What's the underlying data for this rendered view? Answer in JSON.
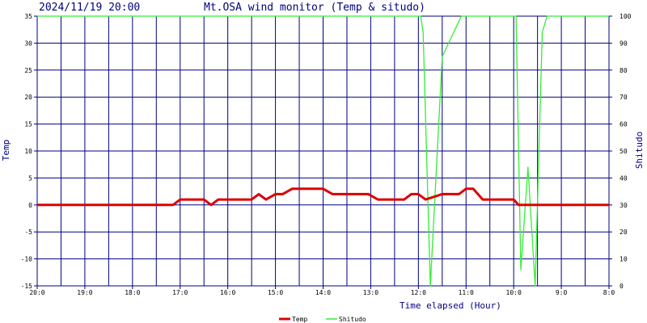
{
  "header": {
    "timestamp": "2024/11/19 20:00",
    "title": "Mt.OSA wind monitor (Temp & situdo)"
  },
  "colors": {
    "axis_text": "#000080",
    "grid": "#000080",
    "temp": "#dd0000",
    "shitudo": "#33ee33"
  },
  "chart_data": {
    "type": "line",
    "title": "Mt.OSA wind monitor (Temp & situdo)",
    "xlabel": "Time elapsed (Hour)",
    "ylabel_left": "Temp",
    "ylabel_right": "Shitudo",
    "x_ticks": [
      "20:0",
      "19:0",
      "18:0",
      "17:0",
      "16:0",
      "15:0",
      "14:0",
      "13:0",
      "12:0",
      "11:0",
      "10:0",
      "9:0",
      "8:0"
    ],
    "xlim": [
      0,
      12
    ],
    "y_left": {
      "lim": [
        -15,
        35
      ],
      "ticks": [
        "35",
        "30",
        "25",
        "20",
        "15",
        "10",
        "5",
        "0",
        "-5",
        "-10",
        "-15"
      ]
    },
    "y_right": {
      "lim": [
        0,
        100
      ],
      "ticks": [
        "100",
        "90",
        "80",
        "70",
        "60",
        "50",
        "40",
        "30",
        "20",
        "10",
        "0"
      ]
    },
    "grid": true,
    "legend_position": "bottom-center",
    "series": [
      {
        "name": "Temp",
        "axis": "left",
        "x": [
          0,
          2.85,
          3.0,
          3.5,
          3.65,
          3.8,
          4.5,
          4.65,
          4.8,
          5.0,
          5.15,
          5.35,
          6.0,
          6.2,
          6.95,
          7.15,
          7.7,
          7.85,
          8.0,
          8.15,
          8.5,
          8.65,
          8.85,
          9.0,
          9.15,
          9.35,
          10.0,
          10.1,
          12
        ],
        "y": [
          0,
          0,
          1,
          1,
          0,
          1,
          1,
          2,
          1,
          2,
          2,
          3,
          3,
          2,
          2,
          1,
          1,
          2,
          2,
          1,
          2,
          2,
          2,
          3,
          3,
          1,
          1,
          0,
          0
        ]
      },
      {
        "name": "Shitudo",
        "axis": "right",
        "x": [
          0,
          8.05,
          8.1,
          8.25,
          8.5,
          8.9,
          9.3,
          10.05,
          10.15,
          10.3,
          10.45,
          10.6,
          10.7,
          12
        ],
        "y": [
          100,
          100,
          94,
          0,
          85,
          100,
          100,
          100,
          6,
          44,
          0,
          94,
          100,
          100
        ]
      }
    ]
  }
}
